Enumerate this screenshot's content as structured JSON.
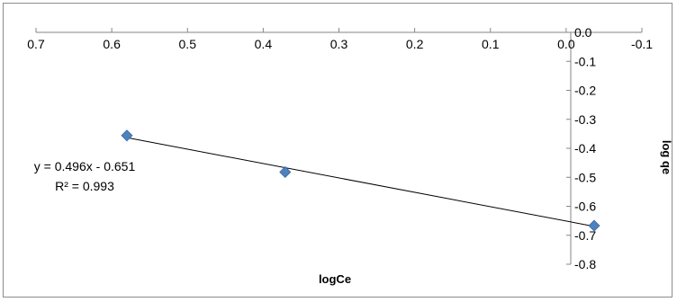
{
  "chart_data": {
    "type": "scatter",
    "xlabel": "logCe",
    "ylabel": "log qe",
    "xlim": [
      0.7,
      -0.1
    ],
    "ylim": [
      -0.8,
      0.0
    ],
    "x_reversed": true,
    "x_ticks": [
      0.7,
      0.6,
      0.5,
      0.4,
      0.3,
      0.2,
      0.1,
      0.0,
      -0.1
    ],
    "x_tick_labels": [
      "0.7",
      "0.6",
      "0.5",
      "0.4",
      "0.3",
      "0.2",
      "0.1",
      "0.0",
      "-0.1"
    ],
    "y_ticks": [
      0.0,
      -0.1,
      -0.2,
      -0.3,
      -0.4,
      -0.5,
      -0.6,
      -0.7,
      -0.8
    ],
    "y_tick_labels": [
      "0.0",
      "-0.1",
      "-0.2",
      "-0.3",
      "-0.4",
      "-0.5",
      "-0.6",
      "-0.7",
      "-0.8"
    ],
    "grid": false,
    "series": [
      {
        "x": [
          0.58,
          0.371,
          -0.037
        ],
        "y": [
          -0.356,
          -0.482,
          -0.667
        ],
        "marker": "diamond",
        "color": "#4f81bd"
      }
    ],
    "trendline": {
      "slope": 0.496,
      "intercept": -0.651,
      "x_range": [
        0.58,
        -0.037
      ],
      "color": "#000000"
    },
    "annotations": [
      "y = 0.496x - 0.651",
      "R² = 0.993"
    ]
  }
}
